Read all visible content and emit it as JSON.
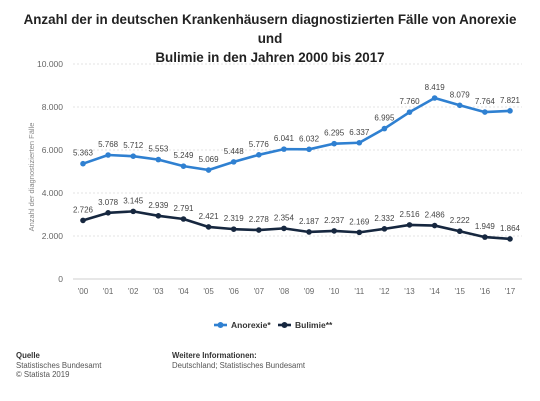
{
  "chart_data": {
    "type": "line",
    "title_line1": "Anzahl der in deutschen Krankenhäusern diagnostizierten Fälle von Anorexie und",
    "title_line2": "Bulimie in den Jahren 2000 bis 2017",
    "ylabel": "Anzahl der diagnostizierten Fälle",
    "xlabel": "",
    "ylim": [
      0,
      10000
    ],
    "yticks": [
      0,
      2000,
      4000,
      6000,
      8000,
      10000
    ],
    "ytick_labels": [
      "0",
      "2.000",
      "4.000",
      "6.000",
      "8.000",
      "10.000"
    ],
    "categories": [
      "'00",
      "'01",
      "'02",
      "'03",
      "'04",
      "'05",
      "'06",
      "'07",
      "'08",
      "'09",
      "'10",
      "'11",
      "'12",
      "'13",
      "'14",
      "'15",
      "'16",
      "'17"
    ],
    "grid": true,
    "legend_position": "bottom",
    "series": [
      {
        "name": "Anorexie*",
        "color": "#2f80d1",
        "values": [
          5363,
          5768,
          5712,
          5553,
          5249,
          5069,
          5448,
          5776,
          6041,
          6032,
          6295,
          6337,
          6995,
          7760,
          8419,
          8079,
          7764,
          7821
        ],
        "labels": [
          "5.363",
          "5.768",
          "5.712",
          "5.553",
          "5.249",
          "5.069",
          "5.448",
          "5.776",
          "6.041",
          "6.032",
          "6.295",
          "6.337",
          "6.995",
          "7.760",
          "8.419",
          "8.079",
          "7.764",
          "7.821"
        ]
      },
      {
        "name": "Bulimie**",
        "color": "#16273f",
        "values": [
          2726,
          3078,
          3145,
          2939,
          2791,
          2421,
          2319,
          2278,
          2354,
          2187,
          2237,
          2169,
          2332,
          2516,
          2486,
          2222,
          1949,
          1864
        ],
        "labels": [
          "2.726",
          "3.078",
          "3.145",
          "2.939",
          "2.791",
          "2.421",
          "2.319",
          "2.278",
          "2.354",
          "2.187",
          "2.237",
          "2.169",
          "2.332",
          "2.516",
          "2.486",
          "2.222",
          "1.949",
          "1.864"
        ]
      }
    ]
  },
  "footer": {
    "source_heading": "Quelle",
    "source_line1": "Statistisches Bundesamt",
    "source_line2": "© Statista 2019",
    "info_heading": "Weitere Informationen:",
    "info_line1": "Deutschland; Statistisches Bundesamt"
  }
}
